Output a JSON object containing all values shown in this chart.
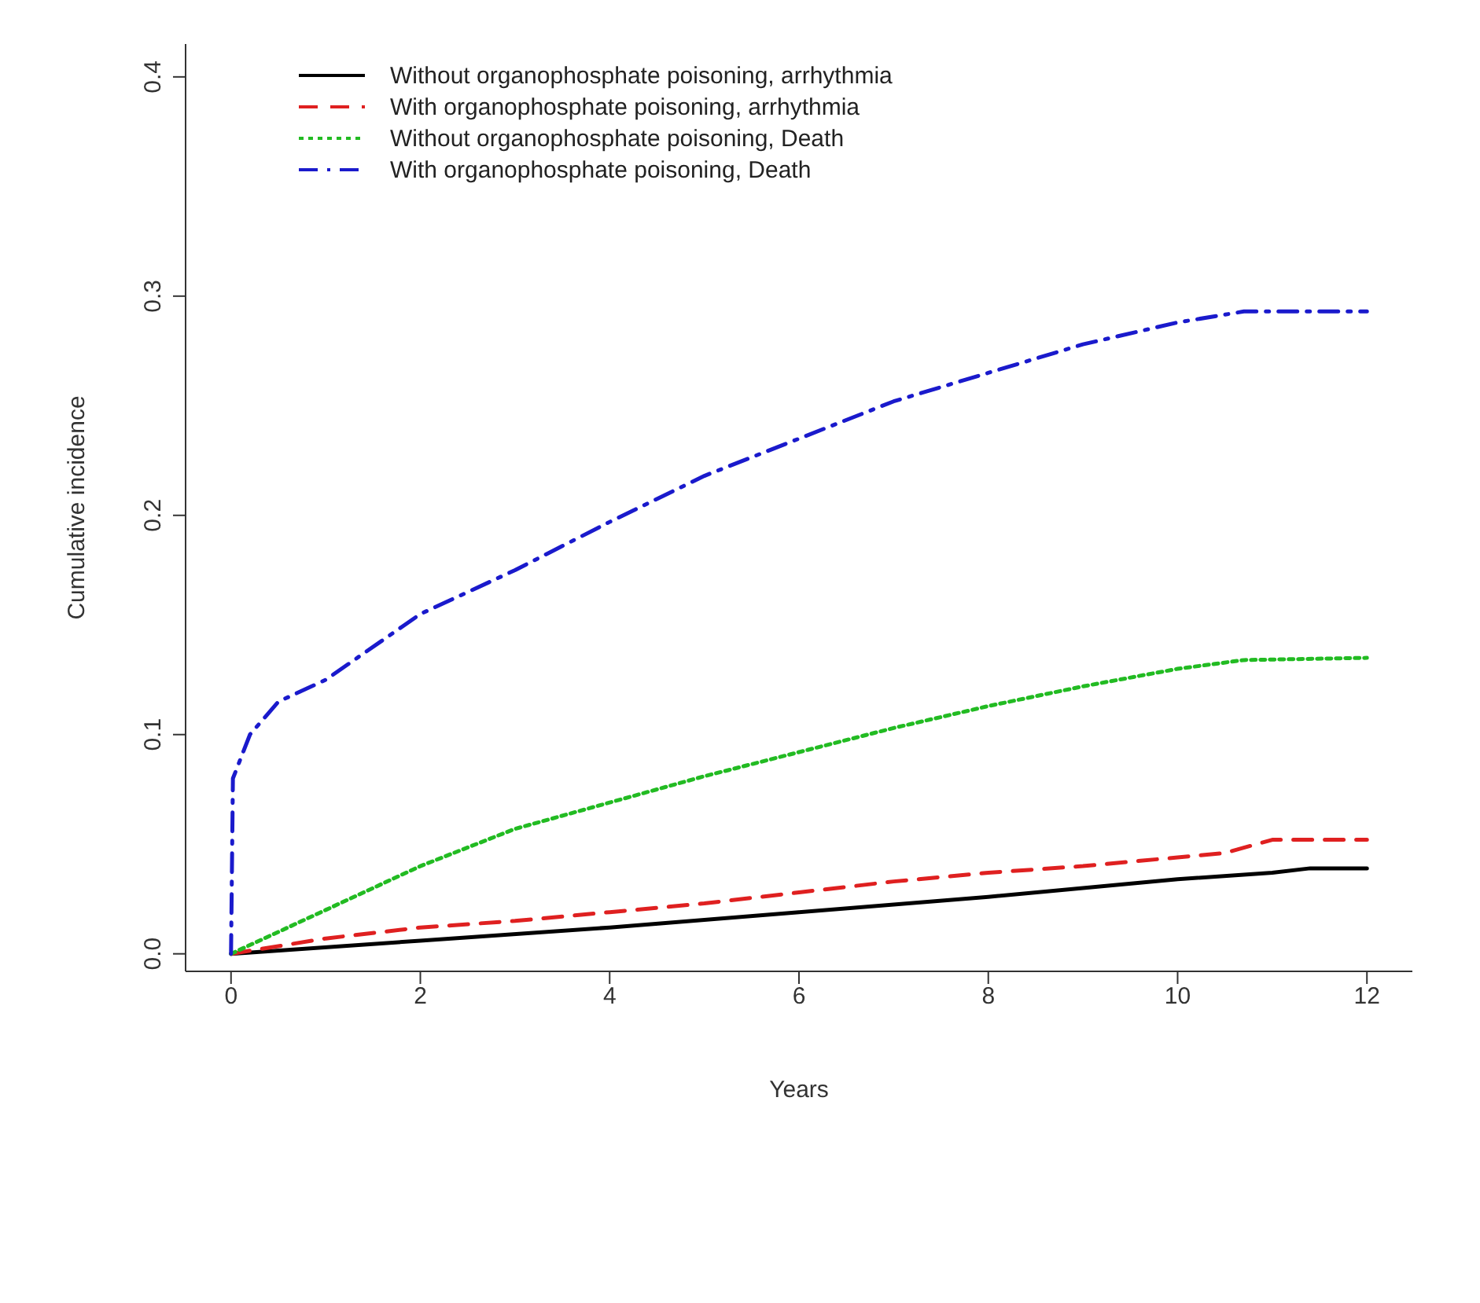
{
  "chart_data": {
    "type": "line",
    "xlabel": "Years",
    "ylabel": "Cumulative incidence",
    "xlim": [
      -0.48,
      12.48
    ],
    "ylim": [
      -0.008,
      0.415
    ],
    "xticks": [
      0,
      2,
      4,
      6,
      8,
      10,
      12
    ],
    "yticks": [
      {
        "value": 0,
        "label": "0.0"
      },
      0.1,
      0.2,
      0.3,
      0.4
    ],
    "grid": false,
    "legend": "top left",
    "marker": "none",
    "series": [
      {
        "name": "Without organophosphate poisoning, arrhythmia",
        "color": "#000000",
        "line_style": "solid",
        "x": [
          0,
          2,
          4,
          6,
          8,
          9,
          10,
          11,
          11.4,
          12
        ],
        "values": [
          0,
          0.006,
          0.012,
          0.019,
          0.026,
          0.03,
          0.034,
          0.037,
          0.039,
          0.039
        ]
      },
      {
        "name": "With organophosphate poisoning, arrhythmia",
        "color": "#df2020",
        "line_style": "dashed",
        "x": [
          0,
          1,
          2,
          3,
          4,
          5,
          6,
          7,
          8,
          9,
          10,
          10.5,
          11,
          12
        ],
        "values": [
          0,
          0.007,
          0.012,
          0.015,
          0.019,
          0.023,
          0.028,
          0.033,
          0.037,
          0.04,
          0.044,
          0.046,
          0.052,
          0.052
        ]
      },
      {
        "name": "Without organophosphate poisoning, Death",
        "color": "#22bb22",
        "line_style": "dotted",
        "x": [
          0,
          1,
          2,
          3,
          4,
          5,
          6,
          7,
          8,
          9,
          10,
          10.7,
          12
        ],
        "values": [
          0,
          0.02,
          0.04,
          0.057,
          0.069,
          0.081,
          0.092,
          0.103,
          0.113,
          0.122,
          0.13,
          0.134,
          0.135
        ]
      },
      {
        "name": "With organophosphate poisoning, Death",
        "color": "#1a1acc",
        "line_style": "dashdot",
        "x": [
          0,
          0.02,
          0.2,
          0.5,
          1,
          2,
          3,
          4,
          5,
          6,
          7,
          8,
          9,
          10,
          10.7,
          12
        ],
        "values": [
          0,
          0.08,
          0.1,
          0.115,
          0.125,
          0.155,
          0.175,
          0.197,
          0.218,
          0.235,
          0.252,
          0.265,
          0.278,
          0.288,
          0.293,
          0.293
        ]
      }
    ]
  }
}
